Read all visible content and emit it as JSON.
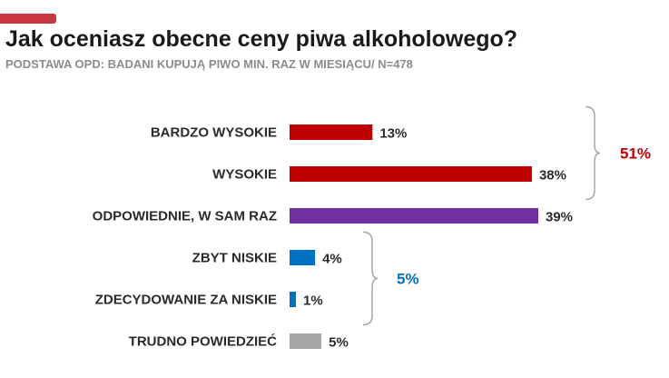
{
  "header": {
    "title": "Jak oceniasz obecne ceny piwa alkoholowego?",
    "subtitle": "PODSTAWA OPD: BADANI KUPUJĄ PIWO MIN. RAZ W MIESIĄCU/ N=478"
  },
  "colors": {
    "accent": "#c8373d",
    "high": "#c00000",
    "adequate": "#7030a0",
    "low": "#0070c0",
    "unknown": "#a6a6a6",
    "bracket": "#a6a6a6"
  },
  "chart_data": {
    "type": "bar",
    "orientation": "horizontal",
    "title": "Jak oceniasz obecne ceny piwa alkoholowego?",
    "categories": [
      "BARDZO WYSOKIE",
      "WYSOKIE",
      "ODPOWIEDNIE, W SAM RAZ",
      "ZBYT NISKIE",
      "ZDECYDOWANIE ZA NISKIE",
      "TRUDNO POWIEDZIEĆ"
    ],
    "values": [
      13,
      38,
      39,
      4,
      1,
      5
    ],
    "value_labels": [
      "13%",
      "38%",
      "39%",
      "4%",
      "1%",
      "5%"
    ],
    "bar_colors": [
      "#c00000",
      "#c00000",
      "#7030a0",
      "#0070c0",
      "#0070c0",
      "#a6a6a6"
    ],
    "xlim": [
      0,
      40
    ],
    "grid": false,
    "groups": [
      {
        "label": "51%",
        "from": 0,
        "to": 1,
        "color": "#c00000"
      },
      {
        "label": "5%",
        "from": 3,
        "to": 4,
        "color": "#0070c0"
      }
    ]
  }
}
